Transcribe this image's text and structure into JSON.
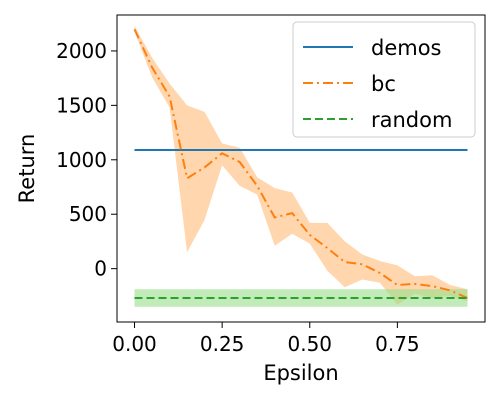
{
  "chart_data": {
    "type": "line",
    "title": "",
    "xlabel": "Epsilon",
    "ylabel": "Return",
    "xlim": [
      -0.05,
      1.0
    ],
    "ylim": [
      -490,
      2330
    ],
    "grid": false,
    "legend_position": "top-right",
    "x_ticks": [
      0.0,
      0.25,
      0.5,
      0.75
    ],
    "x_tick_labels": [
      "0.00",
      "0.25",
      "0.50",
      "0.75"
    ],
    "y_ticks": [
      0,
      500,
      1000,
      1500,
      2000
    ],
    "y_tick_labels": [
      "0",
      "500",
      "1000",
      "1500",
      "2000"
    ],
    "series": [
      {
        "name": "demos",
        "style": "solid",
        "color": "#1f77b4",
        "x": [
          0.0,
          0.95
        ],
        "y": [
          1090,
          1090
        ]
      },
      {
        "name": "bc",
        "style": "dashdot",
        "color": "#ff7f0e",
        "band_color": "#ffbb78",
        "x": [
          0.0,
          0.05,
          0.1,
          0.15,
          0.2,
          0.25,
          0.3,
          0.35,
          0.4,
          0.45,
          0.5,
          0.55,
          0.6,
          0.65,
          0.7,
          0.75,
          0.8,
          0.85,
          0.9,
          0.95
        ],
        "y": [
          2200,
          1850,
          1580,
          830,
          930,
          1060,
          980,
          760,
          470,
          510,
          310,
          190,
          60,
          40,
          -40,
          -150,
          -140,
          -160,
          -200,
          -270
        ],
        "lower": [
          2180,
          1760,
          1480,
          150,
          450,
          950,
          760,
          680,
          210,
          320,
          230,
          -20,
          -170,
          -100,
          -130,
          -330,
          -230,
          -270,
          -250,
          -300
        ],
        "upper": [
          2230,
          1940,
          1700,
          1500,
          1440,
          1150,
          1110,
          840,
          740,
          700,
          420,
          420,
          250,
          130,
          70,
          30,
          -70,
          -60,
          -150,
          -190
        ]
      },
      {
        "name": "random",
        "style": "dashed",
        "color": "#2ca02c",
        "band_color": "#98df8a",
        "x": [
          0.0,
          0.95
        ],
        "y": [
          -270,
          -270
        ],
        "lower": [
          -350,
          -350
        ],
        "upper": [
          -190,
          -190
        ]
      }
    ]
  }
}
